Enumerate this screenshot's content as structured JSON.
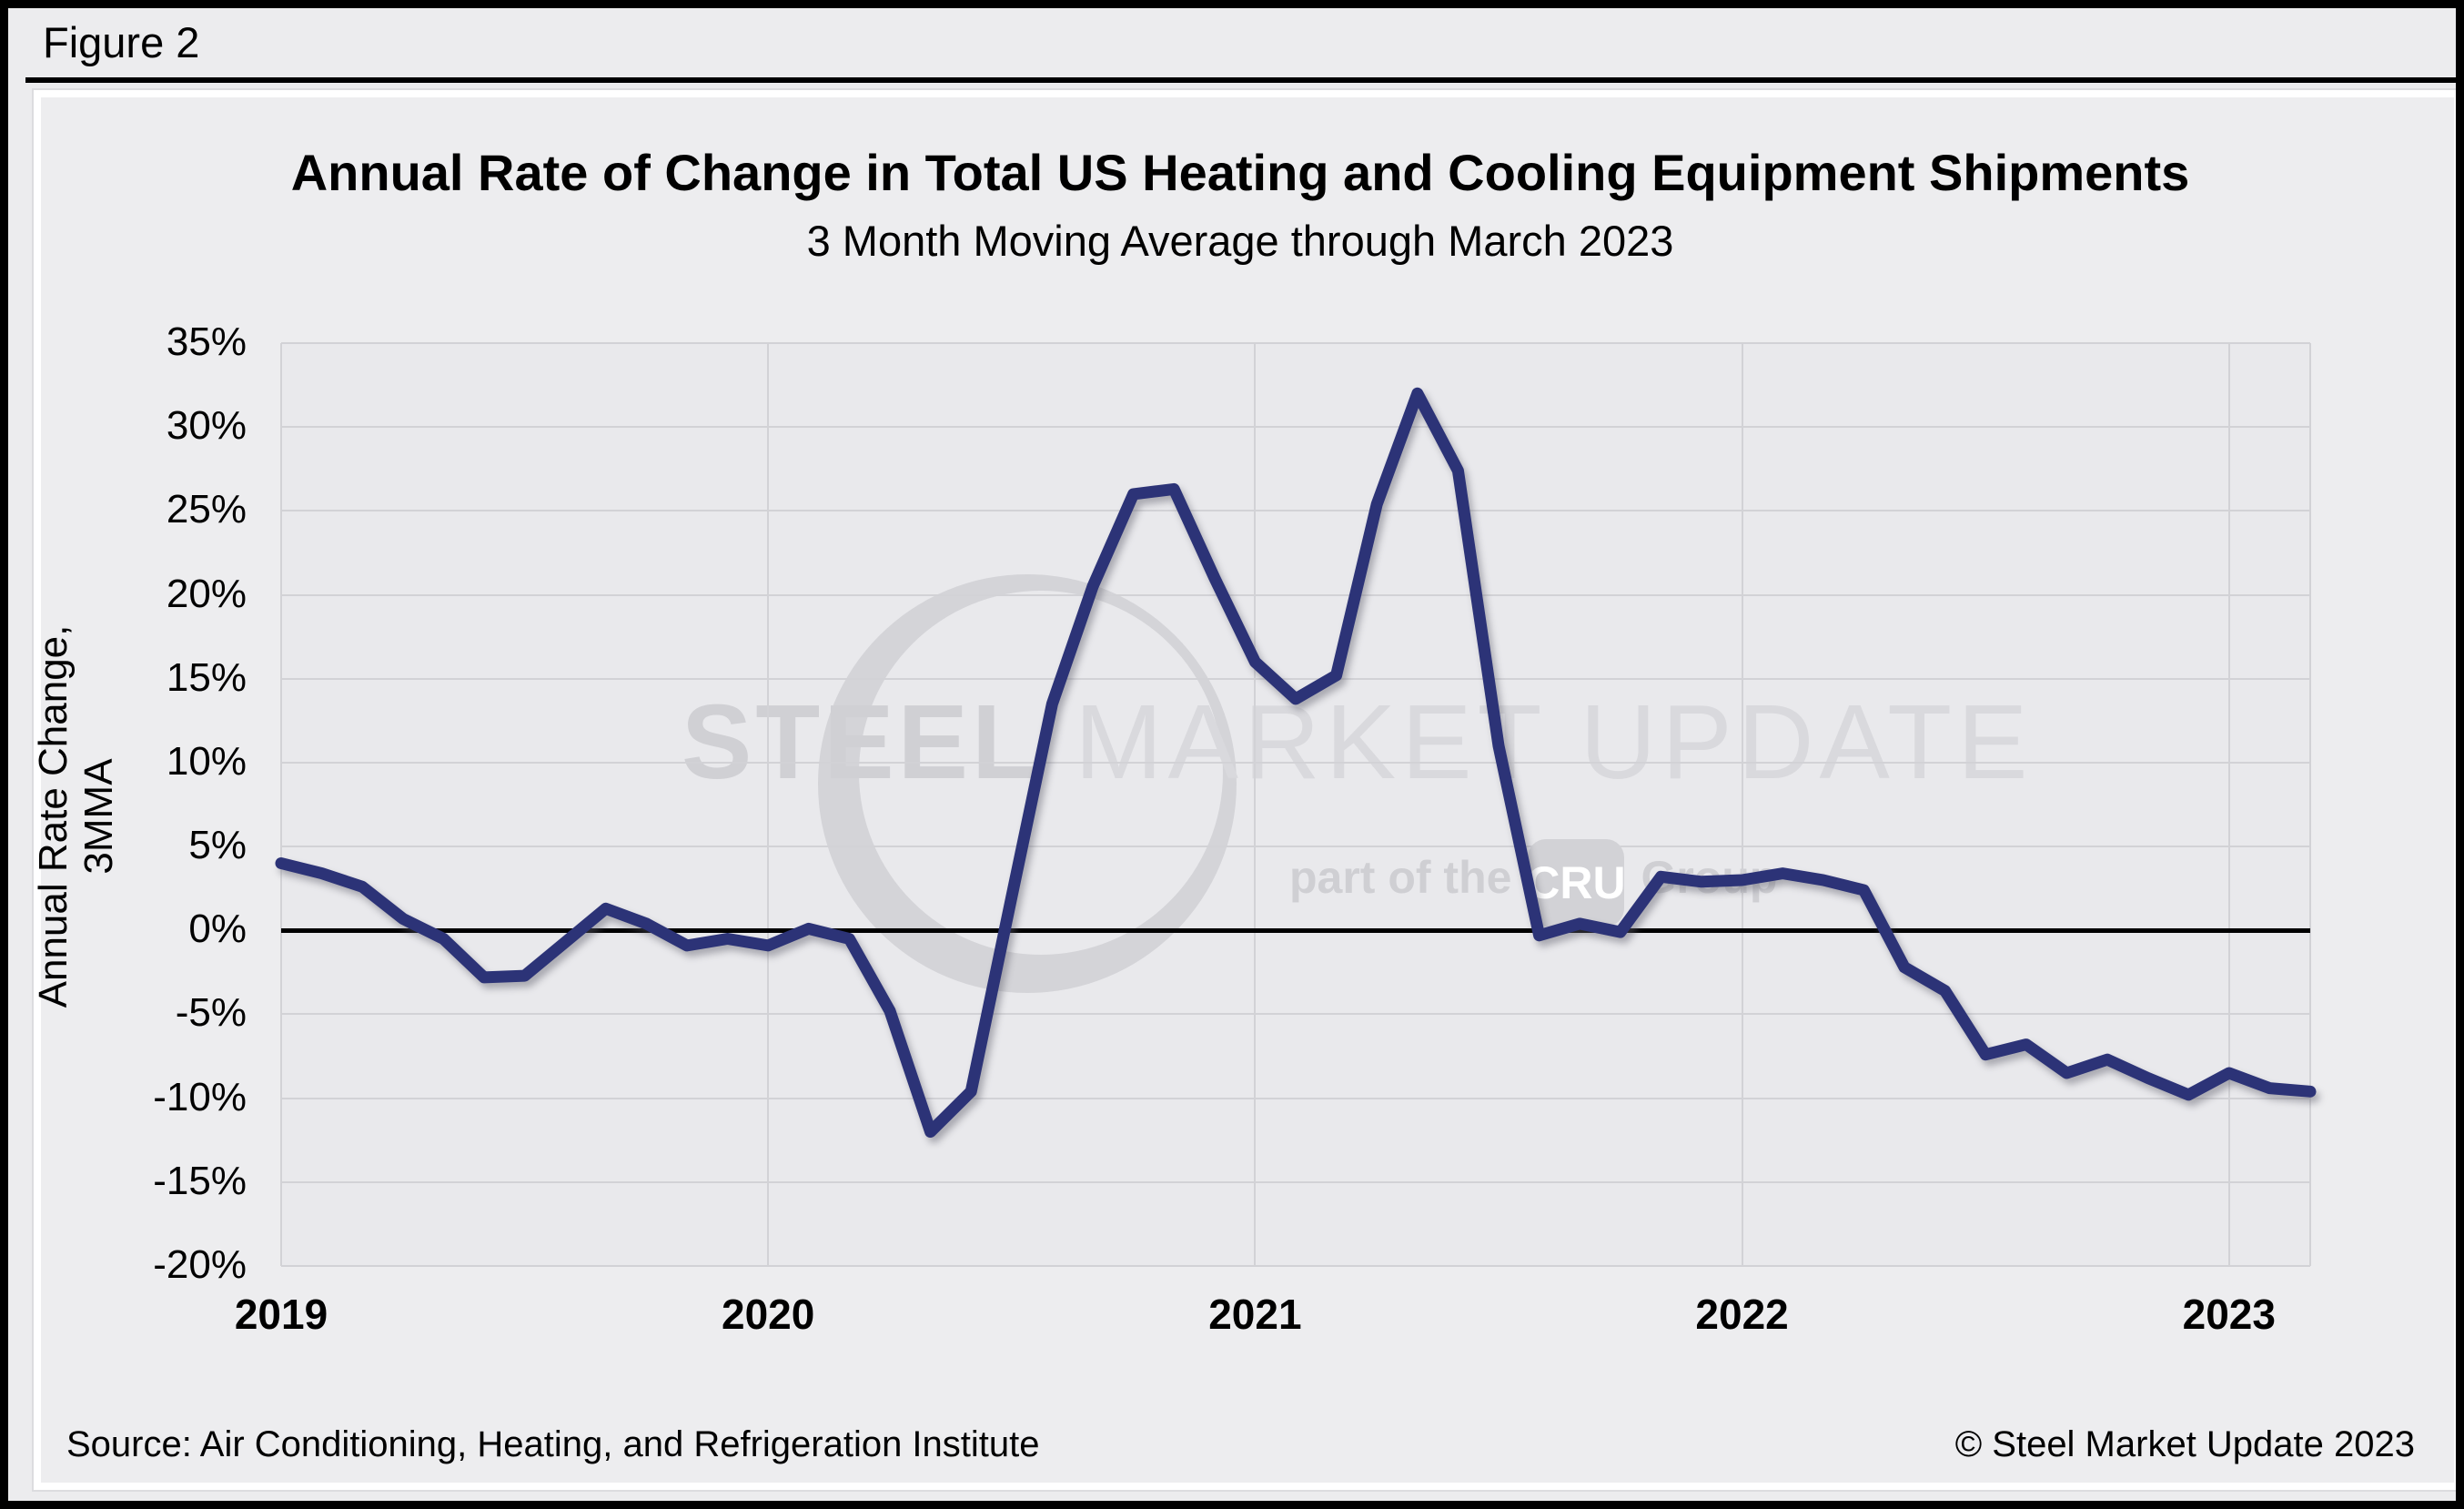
{
  "figure_label": "Figure 2",
  "chart": {
    "title": "Annual Rate of Change in Total US Heating and Cooling Equipment Shipments",
    "subtitle": "3 Month Moving Average through March 2023",
    "y_axis_title": "Annual Rate Change, 3MMA"
  },
  "watermark": {
    "steel": "STEEL",
    "rest": " MARKET UPDATE",
    "part_of_the": "part of the",
    "cru": "CRU",
    "group": "Group"
  },
  "footer": {
    "source": "Source: Air Conditioning, Heating, and Refrigeration Institute",
    "copyright": "© Steel Market Update 2023"
  },
  "chart_data": {
    "type": "line",
    "title": "Annual Rate of Change in Total US Heating and Cooling Equipment Shipments",
    "subtitle": "3 Month Moving Average through March 2023",
    "ylabel": "Annual Rate Change, 3MMA",
    "xlabel": "",
    "x_start": "2019-01",
    "x_end": "2023-03",
    "frequency": "monthly",
    "x_tick_labels": [
      "2019",
      "2020",
      "2021",
      "2022",
      "2023"
    ],
    "y_tick_labels": [
      "35%",
      "30%",
      "25%",
      "20%",
      "15%",
      "10%",
      "5%",
      "0%",
      "-5%",
      "-10%",
      "-15%",
      "-20%"
    ],
    "y_ticks_percent": [
      35,
      30,
      25,
      20,
      15,
      10,
      5,
      0,
      -5,
      -10,
      -15,
      -20
    ],
    "ylim": [
      -20,
      35
    ],
    "grid": true,
    "legend": "none",
    "zero_line": true,
    "series": [
      {
        "name": "Annual rate of change, 3MMA (%)",
        "color": "#2c3377",
        "values": [
          4.0,
          3.4,
          2.6,
          0.7,
          -0.5,
          -2.8,
          -2.7,
          -0.7,
          1.3,
          0.4,
          -0.9,
          -0.5,
          -0.9,
          0.1,
          -0.5,
          -4.8,
          -12.0,
          -9.6,
          2.0,
          13.5,
          20.5,
          26.0,
          26.3,
          21.0,
          16.0,
          13.8,
          15.2,
          25.4,
          32.0,
          27.4,
          11.0,
          -0.3,
          0.4,
          -0.1,
          3.2,
          2.9,
          3.0,
          3.4,
          3.0,
          2.4,
          -2.2,
          -3.6,
          -7.4,
          -6.8,
          -8.5,
          -7.7,
          -8.8,
          -9.8,
          -8.5,
          -9.4,
          -9.6
        ]
      }
    ]
  }
}
